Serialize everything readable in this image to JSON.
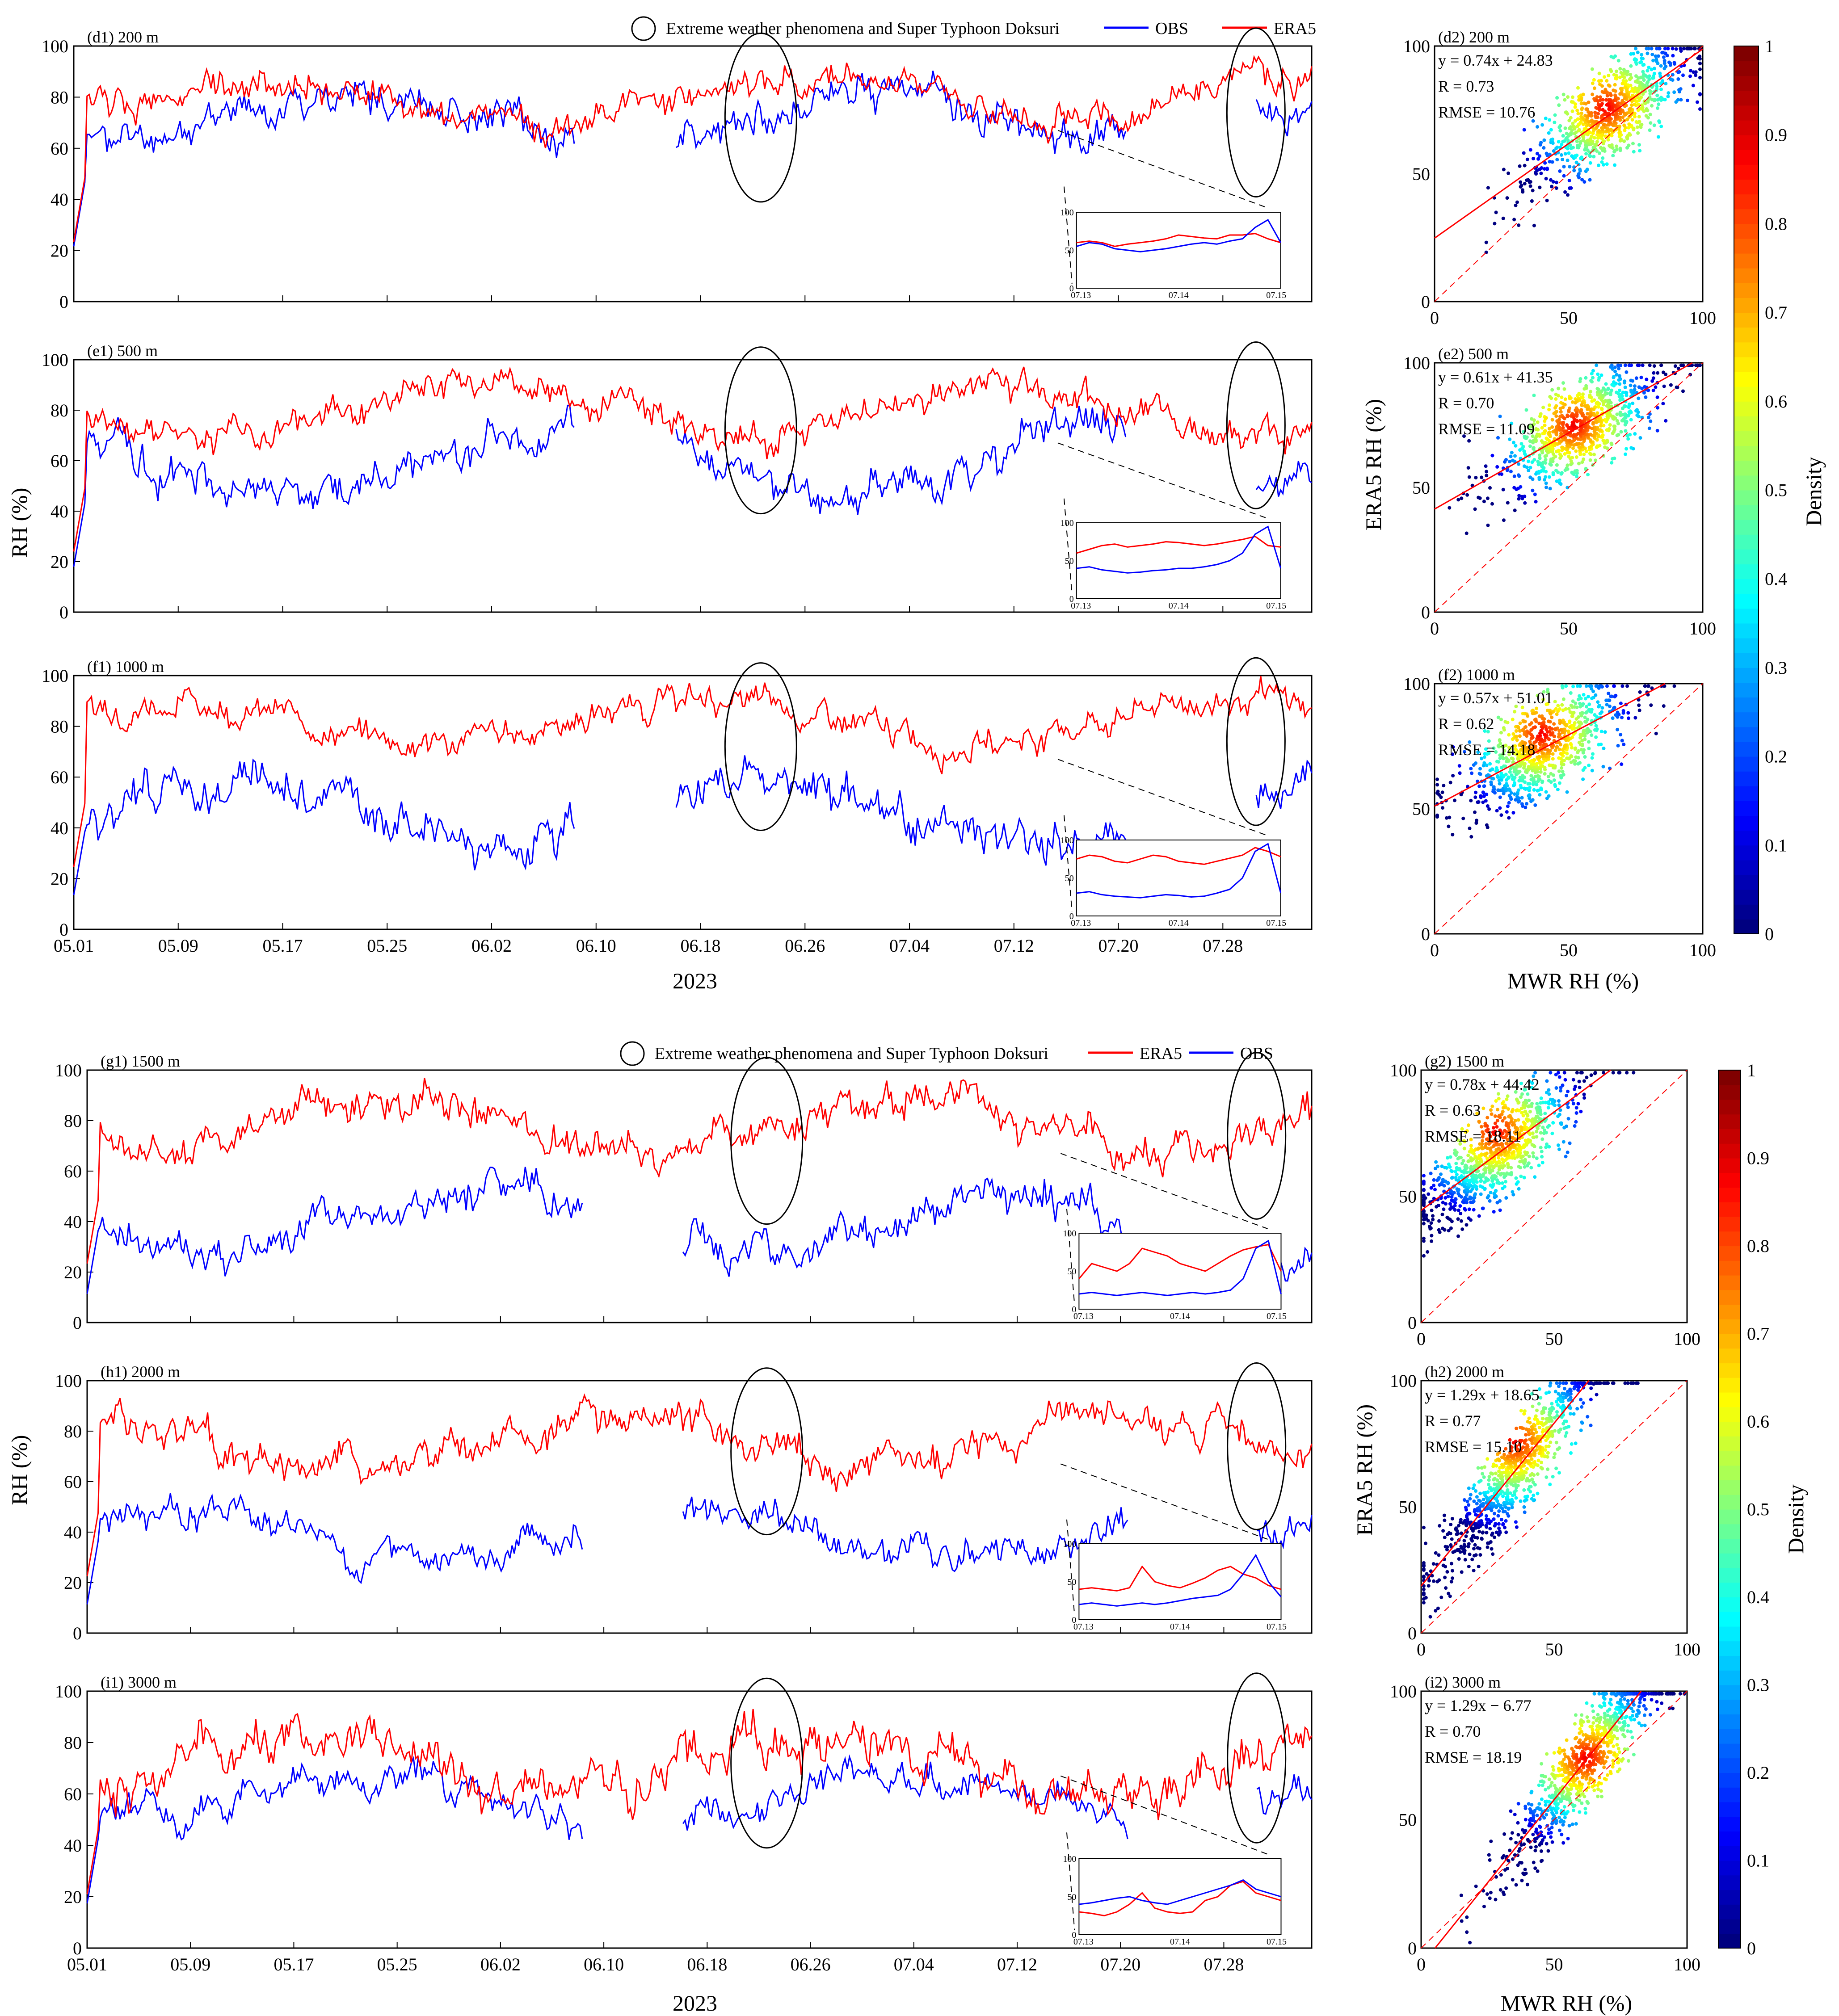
{
  "colors": {
    "obs": "#0000ff",
    "era5": "#ff0000",
    "text": "#000000"
  },
  "legend_top": {
    "circle_label": "Extreme weather phenomena and Super Typhoon Doksuri",
    "first": "OBS",
    "second": "ERA5"
  },
  "legend_bottom": {
    "circle_label": "Extreme weather phenomena and Super Typhoon Doksuri",
    "first": "ERA5",
    "second": "OBS"
  },
  "labels": {
    "rh_axis": "RH (%)",
    "era5_axis": "ERA5 RH (%)",
    "mwr_axis": "MWR RH (%)",
    "year": "2023",
    "density": "Density",
    "date_ticks": [
      "05.01",
      "05.09",
      "05.17",
      "05.25",
      "06.02",
      "06.10",
      "06.18",
      "06.26",
      "07.04",
      "07.12",
      "07.20",
      "07.28"
    ],
    "inset_ticks": [
      "07.13",
      "07.14",
      "07.15"
    ],
    "rh_ticks": [
      "0",
      "20",
      "40",
      "60",
      "80",
      "100"
    ],
    "scatter_ticks": [
      "0",
      "50",
      "100"
    ],
    "inset_y_ticks": [
      "0",
      "50",
      "100"
    ],
    "colorbar_ticks": [
      "0",
      "0.1",
      "0.2",
      "0.3",
      "0.4",
      "0.5",
      "0.6",
      "0.7",
      "0.8",
      "0.9",
      "1"
    ]
  },
  "chart_data": [
    {
      "type": "line",
      "id": "d1",
      "title": "(d1) 200 m",
      "ylabel": "",
      "ylim": [
        0,
        100
      ],
      "series": [
        {
          "name": "OBS",
          "base": 72,
          "amp": 14,
          "seed": 11
        },
        {
          "name": "ERA5",
          "base": 78,
          "amp": 13,
          "seed": 12
        }
      ],
      "inset": {
        "ylim": [
          0,
          100
        ],
        "obs": [
          55,
          60,
          58,
          52,
          50,
          48,
          50,
          52,
          55,
          58,
          60,
          58,
          62,
          65,
          80,
          90,
          60
        ],
        "era5": [
          60,
          62,
          60,
          55,
          58,
          60,
          62,
          65,
          70,
          68,
          66,
          65,
          70,
          70,
          72,
          65,
          60
        ]
      }
    },
    {
      "type": "scatter",
      "id": "d2",
      "title": "(d2) 200 m",
      "fit_text": "y = 0.74x + 24.83",
      "r_text": "R = 0.73",
      "rmse_text": "RMSE = 10.76",
      "slope": 0.74,
      "intercept": 24.83,
      "center": [
        64,
        76
      ],
      "ylabel": ""
    },
    {
      "type": "line",
      "id": "e1",
      "title": "(e1) 500 m",
      "ylabel": "RH (%)",
      "ylim": [
        0,
        100
      ],
      "series": [
        {
          "name": "OBS",
          "base": 60,
          "amp": 16,
          "seed": 21
        },
        {
          "name": "ERA5",
          "base": 80,
          "amp": 13,
          "seed": 22
        }
      ],
      "inset": {
        "ylim": [
          0,
          100
        ],
        "obs": [
          40,
          42,
          38,
          36,
          34,
          35,
          37,
          38,
          40,
          40,
          42,
          45,
          50,
          60,
          85,
          95,
          40
        ],
        "era5": [
          60,
          65,
          70,
          72,
          68,
          70,
          72,
          75,
          74,
          72,
          70,
          72,
          75,
          78,
          82,
          70,
          68
        ]
      }
    },
    {
      "type": "scatter",
      "id": "e2",
      "title": "(e2) 500 m",
      "fit_text": "y = 0.61x + 41.35",
      "r_text": "R = 0.70",
      "rmse_text": "RMSE = 11.09",
      "slope": 0.61,
      "intercept": 41.35,
      "center": [
        52,
        75
      ],
      "ylabel": "ERA5 RH (%)"
    },
    {
      "type": "line",
      "id": "f1",
      "title": "(f1) 1000 m",
      "ylabel": "",
      "ylim": [
        0,
        100
      ],
      "series": [
        {
          "name": "OBS",
          "base": 45,
          "amp": 18,
          "seed": 31
        },
        {
          "name": "ERA5",
          "base": 82,
          "amp": 12,
          "seed": 32
        }
      ],
      "inset": {
        "ylim": [
          0,
          100
        ],
        "obs": [
          30,
          32,
          28,
          26,
          25,
          24,
          26,
          28,
          27,
          25,
          26,
          30,
          35,
          50,
          85,
          95,
          30
        ],
        "era5": [
          75,
          80,
          78,
          72,
          70,
          75,
          80,
          78,
          72,
          70,
          68,
          72,
          76,
          80,
          90,
          85,
          78
        ]
      }
    },
    {
      "type": "scatter",
      "id": "f2",
      "title": "(f2) 1000 m",
      "fit_text": "y = 0.57x + 51.01",
      "r_text": "R = 0.62",
      "rmse_text": "RMSE = 14.18",
      "slope": 0.57,
      "intercept": 51.01,
      "center": [
        40,
        80
      ],
      "ylabel": ""
    },
    {
      "type": "line",
      "id": "g1",
      "title": "(g1) 1500 m",
      "ylabel": "",
      "ylim": [
        0,
        100
      ],
      "series": [
        {
          "name": "ERA5",
          "base": 78,
          "amp": 15,
          "seed": 42
        },
        {
          "name": "OBS",
          "base": 38,
          "amp": 16,
          "seed": 41
        }
      ],
      "inset": {
        "ylim": [
          0,
          100
        ],
        "obs": [
          20,
          22,
          20,
          18,
          20,
          22,
          20,
          18,
          20,
          22,
          20,
          22,
          25,
          40,
          80,
          90,
          20
        ],
        "era5": [
          40,
          60,
          55,
          50,
          60,
          80,
          75,
          70,
          60,
          55,
          50,
          60,
          70,
          78,
          82,
          85,
          50
        ]
      }
    },
    {
      "type": "scatter",
      "id": "g2",
      "title": "(g2) 1500 m",
      "fit_text": "y = 0.78x + 44.42",
      "r_text": "R = 0.63",
      "rmse_text": "RMSE = 18.11",
      "slope": 0.78,
      "intercept": 44.42,
      "center": [
        28,
        76
      ],
      "ylabel": ""
    },
    {
      "type": "line",
      "id": "h1",
      "title": "(h1) 2000 m",
      "ylabel": "RH (%)",
      "ylim": [
        0,
        100
      ],
      "series": [
        {
          "name": "ERA5",
          "base": 75,
          "amp": 15,
          "seed": 52
        },
        {
          "name": "OBS",
          "base": 38,
          "amp": 13,
          "seed": 51
        }
      ],
      "inset": {
        "ylim": [
          0,
          100
        ],
        "obs": [
          20,
          22,
          20,
          18,
          20,
          22,
          20,
          22,
          25,
          28,
          30,
          32,
          40,
          60,
          85,
          50,
          30
        ],
        "era5": [
          40,
          42,
          40,
          38,
          42,
          70,
          50,
          45,
          42,
          48,
          55,
          65,
          70,
          60,
          55,
          45,
          40
        ]
      }
    },
    {
      "type": "scatter",
      "id": "h2",
      "title": "(h2) 2000 m",
      "fit_text": "y = 1.29x + 18.65",
      "r_text": "R = 0.77",
      "rmse_text": "RMSE = 15.10",
      "slope": 1.29,
      "intercept": 18.65,
      "center": [
        35,
        76
      ],
      "ylabel": "ERA5 RH (%)"
    },
    {
      "type": "line",
      "id": "i1",
      "title": "(i1) 3000 m",
      "ylabel": "",
      "ylim": [
        0,
        100
      ],
      "series": [
        {
          "name": "OBS",
          "base": 58,
          "amp": 13,
          "seed": 61
        },
        {
          "name": "ERA5",
          "base": 70,
          "amp": 18,
          "seed": 62
        }
      ],
      "inset": {
        "ylim": [
          0,
          100
        ],
        "obs": [
          40,
          42,
          45,
          48,
          50,
          45,
          42,
          40,
          45,
          50,
          55,
          60,
          65,
          72,
          60,
          55,
          50
        ],
        "era5": [
          30,
          28,
          25,
          30,
          40,
          55,
          35,
          30,
          28,
          30,
          45,
          50,
          65,
          70,
          55,
          50,
          45
        ]
      }
    },
    {
      "type": "scatter",
      "id": "i2",
      "title": "(i2) 3000 m",
      "fit_text": "y = 1.29x − 6.77",
      "r_text": "R = 0.70",
      "rmse_text": "RMSE = 18.19",
      "slope": 1.29,
      "intercept": -6.77,
      "center": [
        62,
        74
      ],
      "ylabel": ""
    }
  ]
}
